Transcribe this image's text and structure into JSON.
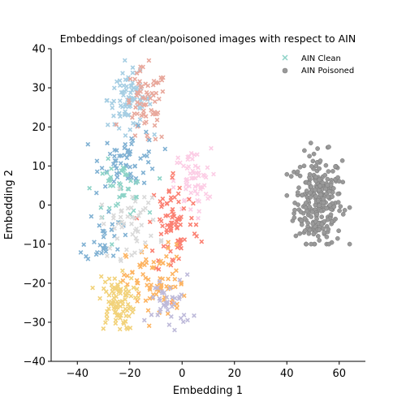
{
  "chart_data": {
    "type": "scatter",
    "title": "Embeddings of clean/poisoned images with respect to AIN",
    "xlabel": "Embedding 1",
    "ylabel": "Embedding 2",
    "xlim": [
      -50,
      70
    ],
    "ylim": [
      -40,
      40
    ],
    "xticks": [
      "−40",
      "−20",
      "0",
      "20",
      "40",
      "60"
    ],
    "xtick_values": [
      -40,
      -20,
      0,
      20,
      40,
      60
    ],
    "yticks": [
      "−40",
      "−30",
      "−20",
      "−10",
      "0",
      "10",
      "20",
      "30",
      "40"
    ],
    "ytick_values": [
      -40,
      -30,
      -20,
      -10,
      0,
      10,
      20,
      30,
      40
    ],
    "grid": false,
    "legend_position": "top-right",
    "series": [
      {
        "name": "AIN Clean",
        "marker": "x",
        "colors": [
          "#8dd3c7",
          "#bebada",
          "#fb8072",
          "#80b1d3",
          "#fdb462",
          "#b3de69",
          "#fccde5",
          "#d9d9d9",
          "#bc80bd",
          "#ccebc5",
          "#ffed6f",
          "#f2d27a",
          "#a6cee3",
          "#e8a89c"
        ],
        "clusters": [
          {
            "label": "top-left, light blue",
            "center": [
              -20,
              27
            ],
            "spread": [
              6,
              5
            ],
            "count": 90,
            "color_index": 12
          },
          {
            "label": "top, salmon",
            "center": [
              -14,
              25
            ],
            "spread": [
              6,
              7
            ],
            "count": 70,
            "color_index": 13
          },
          {
            "label": "upper-mid, blue",
            "center": [
              -20,
              12
            ],
            "spread": [
              8,
              5
            ],
            "count": 60,
            "color_index": 3
          },
          {
            "label": "mid, teal",
            "center": [
              -24,
              4
            ],
            "spread": [
              7,
              5
            ],
            "count": 45,
            "color_index": 0
          },
          {
            "label": "mid-right, pink",
            "center": [
              4,
              6
            ],
            "spread": [
              5,
              6
            ],
            "count": 60,
            "color_index": 6
          },
          {
            "label": "center, red",
            "center": [
              -3,
              -5
            ],
            "spread": [
              7,
              10
            ],
            "count": 80,
            "color_index": 2
          },
          {
            "label": "left-mid, blue",
            "center": [
              -30,
              -8
            ],
            "spread": [
              5,
              5
            ],
            "count": 30,
            "color_index": 3
          },
          {
            "label": "lower-left, yellow",
            "center": [
              -25,
              -25
            ],
            "spread": [
              5,
              5
            ],
            "count": 90,
            "color_index": 11
          },
          {
            "label": "lower-center, beige",
            "center": [
              -10,
              -20
            ],
            "spread": [
              8,
              7
            ],
            "count": 80,
            "color_index": 4
          },
          {
            "label": "bottom, lavender",
            "center": [
              -5,
              -25
            ],
            "spread": [
              6,
              5
            ],
            "count": 40,
            "color_index": 1
          },
          {
            "label": "mid-left, light",
            "center": [
              -20,
              -5
            ],
            "spread": [
              8,
              6
            ],
            "count": 50,
            "color_index": 7
          }
        ]
      },
      {
        "name": "AIN Poisoned",
        "marker": "o",
        "color": "#9a9a9a",
        "clusters": [
          {
            "label": "right cluster",
            "center": [
              52,
              1
            ],
            "spread": [
              6,
              7
            ],
            "count": 280
          }
        ]
      }
    ]
  }
}
